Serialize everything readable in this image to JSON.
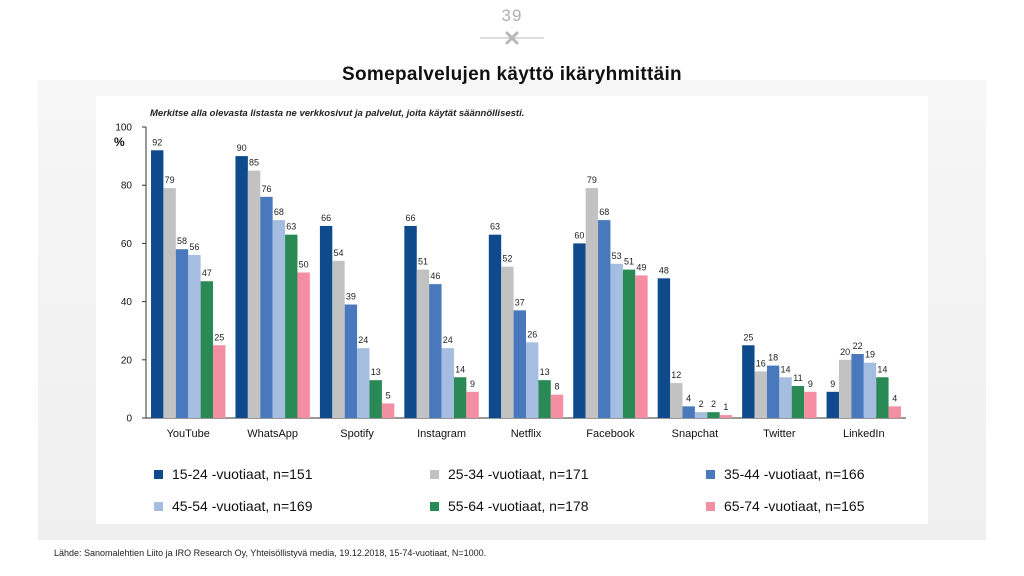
{
  "slide": {
    "number": "39",
    "title": "Somepalvelujen käyttö ikäryhmittäin",
    "source": "Lähde: Sanomalehtien Liito ja IRO Research Oy, Yhteisöllistyvä media, 19.12.2018, 15-74-vuotiaat, N=1000."
  },
  "icons": {
    "divider": "cross-icon"
  },
  "chart_data": {
    "type": "bar",
    "subtitle": "Merkitse alla olevasta listasta ne verkkosivut ja palvelut, joita käytät säännöllisesti.",
    "ylabel": "%",
    "ylim": [
      0,
      100
    ],
    "yticks": [
      0,
      20,
      40,
      60,
      80,
      100
    ],
    "categories": [
      "YouTube",
      "WhatsApp",
      "Spotify",
      "Instagram",
      "Netflix",
      "Facebook",
      "Snapchat",
      "Twitter",
      "LinkedIn"
    ],
    "series": [
      {
        "name": "15-24 -vuotiaat, n=151",
        "color": "#0f4b8c",
        "values": [
          92,
          90,
          66,
          66,
          63,
          60,
          48,
          25,
          9
        ]
      },
      {
        "name": "25-34 -vuotiaat, n=171",
        "color": "#c2c2c2",
        "values": [
          79,
          85,
          54,
          51,
          52,
          79,
          12,
          16,
          20
        ]
      },
      {
        "name": "35-44 -vuotiaat, n=166",
        "color": "#4a78bc",
        "values": [
          58,
          76,
          39,
          46,
          37,
          68,
          4,
          18,
          22
        ]
      },
      {
        "name": "45-54 -vuotiaat, n=169",
        "color": "#a4bde0",
        "values": [
          56,
          68,
          24,
          24,
          26,
          53,
          2,
          14,
          19
        ]
      },
      {
        "name": "55-64 -vuotiaat, n=178",
        "color": "#2a8a56",
        "values": [
          47,
          63,
          13,
          14,
          13,
          51,
          2,
          11,
          14
        ]
      },
      {
        "name": "65-74 -vuotiaat, n=165",
        "color": "#f48ea2",
        "values": [
          25,
          50,
          5,
          9,
          8,
          49,
          1,
          9,
          4
        ]
      }
    ],
    "legend_position": "bottom"
  }
}
